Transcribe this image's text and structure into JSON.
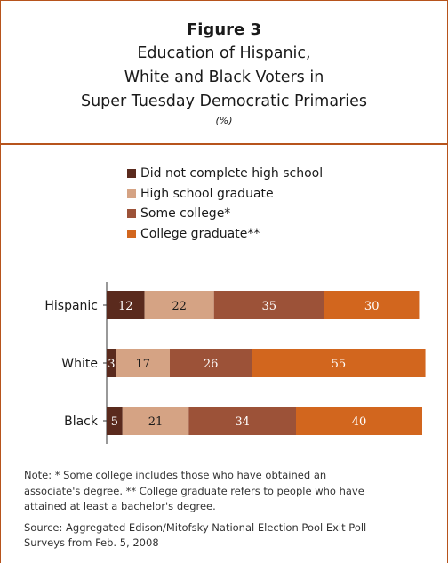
{
  "figure": {
    "label": "Figure 3",
    "title_lines": [
      "Education of Hispanic,",
      "White and Black Voters in",
      "Super Tuesday Democratic Primaries"
    ],
    "subtitle": "(%)"
  },
  "colors": {
    "frame": "#b7541c",
    "did_not_complete": "#5a2a1d",
    "hs_graduate": "#d5a384",
    "some_college": "#9c5238",
    "college_graduate": "#d2661e"
  },
  "chart_data": {
    "type": "bar",
    "orientation": "horizontal",
    "stacked": true,
    "title": "Education of Hispanic, White and Black Voters in Super Tuesday Democratic Primaries",
    "categories": [
      "Hispanic",
      "White",
      "Black"
    ],
    "series": [
      {
        "name": "Did not complete high school",
        "values": [
          12,
          3,
          5
        ],
        "color": "#5a2a1d"
      },
      {
        "name": "High school graduate",
        "values": [
          22,
          17,
          21
        ],
        "color": "#d5a384"
      },
      {
        "name": "Some college*",
        "values": [
          35,
          26,
          34
        ],
        "color": "#9c5238"
      },
      {
        "name": "College graduate**",
        "values": [
          30,
          55,
          40
        ],
        "color": "#d2661e"
      }
    ],
    "xlim": [
      0,
      100
    ],
    "legend": "top",
    "grid": false
  },
  "notes": {
    "note_lines": [
      "Note: * Some college includes those who have obtained an",
      "associate's degree.  ** College graduate refers to people who have",
      "attained at least a bachelor's degree."
    ],
    "source_lines": [
      "Source: Aggregated Edison/Mitofsky National Election Pool Exit Poll",
      "Surveys from Feb. 5, 2008"
    ]
  }
}
